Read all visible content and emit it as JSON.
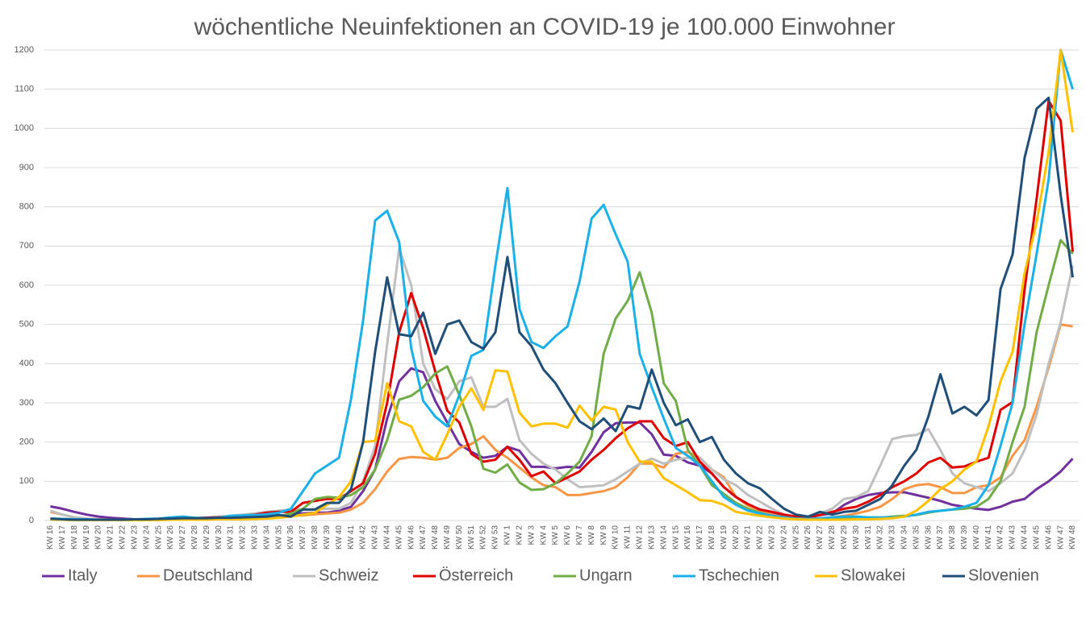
{
  "chart_data": {
    "type": "line",
    "title": "wöchentliche Neuinfektionen an COVID-19 je 100.000 Einwohner",
    "categories": [
      "KW 16",
      "KW 17",
      "KW 18",
      "KW 19",
      "KW 20",
      "KW 21",
      "KW 22",
      "KW 23",
      "KW 24",
      "KW 25",
      "KW 26",
      "KW 27",
      "KW 28",
      "KW 29",
      "KW 30",
      "KW 31",
      "KW 32",
      "KW 33",
      "KW 34",
      "KW 35",
      "KW 36",
      "KW 37",
      "KW 38",
      "KW 39",
      "KW 40",
      "KW 41",
      "KW 42",
      "KW 43",
      "KW 44",
      "KW 45",
      "KW 46",
      "KW 47",
      "KW 48",
      "KW 49",
      "KW 50",
      "KW 51",
      "KW 52",
      "KW 53",
      "KW 1",
      "KW 2",
      "KW 3",
      "KW 4",
      "KW 5",
      "KW 6",
      "KW 7",
      "KW 8",
      "KW 9",
      "KW 10",
      "KW 11",
      "KW 12",
      "KW 13",
      "KW 14",
      "KW 15",
      "KW 16",
      "KW 17",
      "KW 18",
      "KW 19",
      "KW 20",
      "KW 21",
      "KW 22",
      "KW 23",
      "KW 24",
      "KW 25",
      "KW 26",
      "KW 27",
      "KW 28",
      "KW 29",
      "KW 30",
      "KW 31",
      "KW 32",
      "KW 33",
      "KW 34",
      "KW 35",
      "KW 36",
      "KW 37",
      "KW 38",
      "KW 39",
      "KW 40",
      "KW 41",
      "KW 42",
      "KW 43",
      "KW 44",
      "KW 45",
      "KW 46",
      "KW 47",
      "KW 48"
    ],
    "series": [
      {
        "name": "Italy",
        "color": "#7030a0",
        "values": [
          36,
          30,
          22,
          15,
          10,
          7,
          5,
          3,
          2,
          2,
          2,
          2,
          2,
          3,
          4,
          6,
          7,
          8,
          10,
          12,
          15,
          18,
          20,
          20,
          25,
          35,
          75,
          130,
          260,
          355,
          388,
          378,
          305,
          250,
          195,
          175,
          160,
          165,
          188,
          178,
          137,
          137,
          133,
          137,
          135,
          175,
          225,
          248,
          250,
          250,
          220,
          168,
          165,
          148,
          140,
          120,
          85,
          60,
          40,
          28,
          18,
          12,
          8,
          8,
          14,
          18,
          40,
          55,
          65,
          70,
          72,
          72,
          65,
          58,
          50,
          40,
          35,
          30,
          27,
          35,
          48,
          55,
          80,
          100,
          125,
          158
        ]
      },
      {
        "name": "Deutschland",
        "color": "#f79646",
        "values": [
          22,
          15,
          8,
          5,
          3,
          2,
          2,
          2,
          2,
          2,
          3,
          3,
          4,
          5,
          6,
          7,
          8,
          9,
          10,
          10,
          12,
          13,
          16,
          18,
          20,
          28,
          45,
          80,
          125,
          157,
          162,
          160,
          155,
          160,
          185,
          195,
          215,
          180,
          160,
          135,
          110,
          90,
          85,
          65,
          65,
          70,
          75,
          85,
          110,
          145,
          145,
          135,
          170,
          175,
          160,
          130,
          110,
          60,
          38,
          25,
          15,
          8,
          5,
          5,
          5,
          8,
          12,
          18,
          25,
          35,
          55,
          80,
          90,
          93,
          85,
          70,
          70,
          85,
          90,
          110,
          165,
          205,
          290,
          390,
          500,
          495
        ]
      },
      {
        "name": "Schweiz",
        "color": "#bfbfbf",
        "values": [
          25,
          15,
          8,
          5,
          3,
          2,
          2,
          2,
          2,
          3,
          4,
          5,
          6,
          8,
          10,
          12,
          15,
          18,
          22,
          25,
          28,
          28,
          28,
          30,
          30,
          45,
          100,
          190,
          450,
          695,
          600,
          400,
          335,
          310,
          355,
          365,
          290,
          290,
          310,
          205,
          170,
          145,
          130,
          105,
          85,
          87,
          90,
          105,
          125,
          145,
          158,
          145,
          155,
          160,
          160,
          130,
          105,
          90,
          65,
          48,
          30,
          15,
          8,
          8,
          18,
          30,
          55,
          60,
          75,
          140,
          208,
          215,
          218,
          233,
          180,
          120,
          95,
          85,
          75,
          95,
          120,
          180,
          270,
          400,
          505,
          650
        ]
      },
      {
        "name": "Österreich",
        "color": "#e00000",
        "values": [
          4,
          3,
          2,
          2,
          2,
          2,
          2,
          2,
          3,
          4,
          5,
          5,
          6,
          7,
          8,
          10,
          12,
          15,
          20,
          22,
          22,
          45,
          50,
          55,
          55,
          75,
          95,
          170,
          300,
          480,
          580,
          490,
          380,
          280,
          250,
          170,
          150,
          155,
          188,
          155,
          113,
          125,
          95,
          110,
          125,
          155,
          180,
          210,
          235,
          253,
          253,
          210,
          190,
          200,
          150,
          120,
          85,
          60,
          42,
          28,
          22,
          15,
          10,
          8,
          14,
          22,
          30,
          35,
          48,
          65,
          85,
          100,
          120,
          148,
          160,
          135,
          138,
          150,
          160,
          282,
          302,
          590,
          820,
          1070,
          1020,
          685
        ]
      },
      {
        "name": "Ungarn",
        "color": "#70ad47",
        "values": [
          2,
          2,
          1,
          1,
          1,
          1,
          1,
          1,
          2,
          2,
          2,
          3,
          3,
          3,
          3,
          4,
          4,
          5,
          7,
          10,
          18,
          30,
          55,
          60,
          58,
          65,
          85,
          130,
          205,
          308,
          318,
          340,
          375,
          393,
          320,
          240,
          132,
          122,
          143,
          97,
          78,
          80,
          95,
          120,
          150,
          215,
          425,
          515,
          560,
          633,
          530,
          350,
          305,
          180,
          140,
          90,
          68,
          45,
          30,
          20,
          12,
          8,
          5,
          4,
          3,
          3,
          4,
          5,
          6,
          7,
          10,
          12,
          14,
          20,
          25,
          28,
          30,
          35,
          55,
          100,
          200,
          290,
          480,
          600,
          715,
          680
        ]
      },
      {
        "name": "Tschechien",
        "color": "#1ab0e8",
        "values": [
          5,
          4,
          3,
          3,
          2,
          2,
          2,
          3,
          4,
          5,
          8,
          10,
          7,
          6,
          7,
          12,
          13,
          14,
          16,
          20,
          30,
          75,
          120,
          140,
          160,
          310,
          510,
          765,
          790,
          710,
          440,
          305,
          265,
          240,
          320,
          420,
          435,
          650,
          848,
          540,
          455,
          440,
          470,
          495,
          610,
          770,
          805,
          730,
          660,
          425,
          340,
          260,
          185,
          165,
          140,
          100,
          60,
          40,
          25,
          18,
          12,
          8,
          5,
          4,
          6,
          8,
          10,
          10,
          8,
          8,
          8,
          10,
          15,
          22,
          25,
          28,
          35,
          45,
          90,
          190,
          300,
          500,
          680,
          870,
          1200,
          1100
        ]
      },
      {
        "name": "Slowakei",
        "color": "#ffc000",
        "values": [
          3,
          2,
          1,
          1,
          1,
          1,
          1,
          1,
          1,
          1,
          2,
          2,
          2,
          2,
          3,
          3,
          3,
          4,
          5,
          7,
          10,
          15,
          20,
          40,
          60,
          100,
          200,
          203,
          350,
          253,
          240,
          175,
          155,
          220,
          290,
          337,
          282,
          383,
          380,
          275,
          240,
          247,
          247,
          237,
          293,
          255,
          290,
          283,
          200,
          150,
          150,
          108,
          90,
          72,
          52,
          50,
          40,
          22,
          17,
          12,
          8,
          5,
          3,
          2,
          2,
          2,
          2,
          3,
          3,
          4,
          6,
          10,
          25,
          50,
          80,
          100,
          130,
          150,
          240,
          355,
          430,
          630,
          760,
          940,
          1200,
          990
        ]
      },
      {
        "name": "Slovenien",
        "color": "#1f4e79",
        "values": [
          5,
          3,
          2,
          2,
          2,
          2,
          2,
          3,
          3,
          4,
          5,
          6,
          6,
          6,
          7,
          7,
          8,
          9,
          10,
          14,
          10,
          28,
          28,
          45,
          45,
          80,
          200,
          430,
          620,
          475,
          470,
          530,
          425,
          500,
          510,
          455,
          438,
          480,
          672,
          480,
          445,
          385,
          350,
          300,
          253,
          233,
          260,
          228,
          292,
          285,
          385,
          300,
          243,
          258,
          200,
          213,
          155,
          120,
          95,
          82,
          55,
          30,
          15,
          10,
          22,
          15,
          22,
          25,
          40,
          55,
          90,
          140,
          180,
          265,
          373,
          273,
          290,
          268,
          307,
          590,
          678,
          925,
          1050,
          1078,
          830,
          620
        ]
      }
    ],
    "ylim": [
      0,
      1200
    ],
    "yticks": [
      0,
      100,
      200,
      300,
      400,
      500,
      600,
      700,
      800,
      900,
      1000,
      1100,
      1200
    ],
    "grid": true,
    "legend": "bottom"
  }
}
